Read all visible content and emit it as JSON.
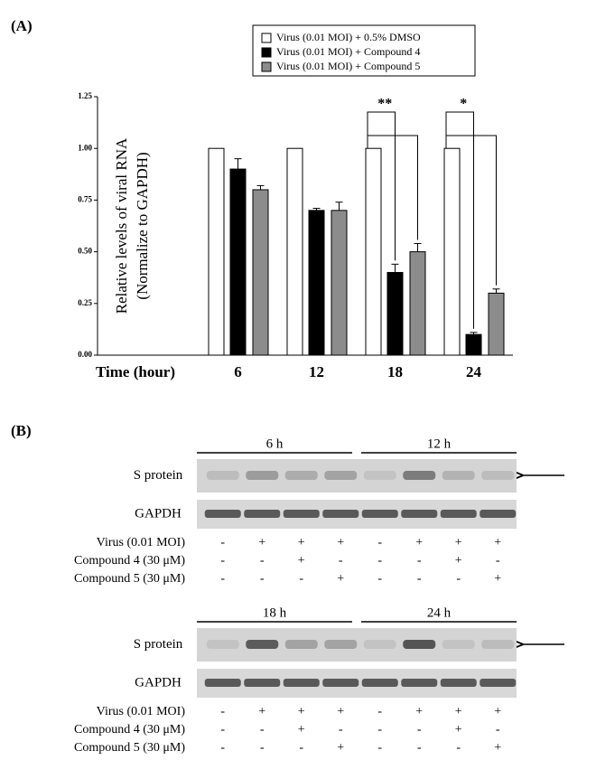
{
  "chart_data": {
    "type": "bar",
    "panel_label": "(A)",
    "y_label": [
      "Relative levels of viral RNA",
      "(Normalize to GAPDH)"
    ],
    "x_label": "Time (hour)",
    "categories": [
      "6",
      "12",
      "18",
      "24"
    ],
    "series": [
      {
        "name": "Virus (0.01 MOI) + 0.5% DMSO",
        "color": "#ffffff",
        "values": [
          1.0,
          1.0,
          1.0,
          1.0
        ]
      },
      {
        "name": "Virus (0.01 MOI) + Compound 4",
        "color": "#000000",
        "values": [
          0.9,
          0.7,
          0.4,
          0.1
        ],
        "errors": [
          0.05,
          0.01,
          0.04,
          0.01
        ]
      },
      {
        "name": "Virus (0.01 MOI) + Compound 5",
        "color": "#8c8c8c",
        "values": [
          0.8,
          0.7,
          0.5,
          0.3
        ],
        "errors": [
          0.02,
          0.04,
          0.04,
          0.02
        ]
      }
    ],
    "ylim": [
      0,
      1.25
    ],
    "yticks": [
      {
        "value": 0,
        "label": "0.00"
      },
      {
        "value": 0.25,
        "label": "0.25"
      },
      {
        "value": 0.5,
        "label": "0.50"
      },
      {
        "value": 0.75,
        "label": "0.75"
      },
      {
        "value": 1.0,
        "label": "1.00"
      },
      {
        "value": 1.25,
        "label": "1.25"
      }
    ],
    "annotations": [
      {
        "category": "18",
        "text": "**"
      },
      {
        "category": "24",
        "text": "*"
      }
    ]
  },
  "western_blot": {
    "panel_label": "(B)",
    "blocks": [
      {
        "times": [
          "6 h",
          "12 h"
        ],
        "rows": [
          "S protein",
          "GAPDH"
        ],
        "conditions": [
          {
            "label": "Virus (0.01 MOI)",
            "signs": [
              "-",
              "+",
              "+",
              "+",
              "-",
              "+",
              "+",
              "+"
            ]
          },
          {
            "label": "Compound 4 (30 μM)",
            "signs": [
              "-",
              "-",
              "+",
              "-",
              "-",
              "-",
              "+",
              "-"
            ]
          },
          {
            "label": "Compound 5 (30 μM)",
            "signs": [
              "-",
              "-",
              "-",
              "+",
              "-",
              "-",
              "-",
              "+"
            ]
          }
        ]
      },
      {
        "times": [
          "18 h",
          "24 h"
        ],
        "rows": [
          "S protein",
          "GAPDH"
        ],
        "conditions": [
          {
            "label": "Virus (0.01 MOI)",
            "signs": [
              "-",
              "+",
              "+",
              "+",
              "-",
              "+",
              "+",
              "+"
            ]
          },
          {
            "label": "Compound 4 (30 μM)",
            "signs": [
              "-",
              "-",
              "+",
              "-",
              "-",
              "-",
              "+",
              "-"
            ]
          },
          {
            "label": "Compound 5 (30 μM)",
            "signs": [
              "-",
              "-",
              "-",
              "+",
              "-",
              "-",
              "-",
              "+"
            ]
          }
        ]
      }
    ]
  }
}
